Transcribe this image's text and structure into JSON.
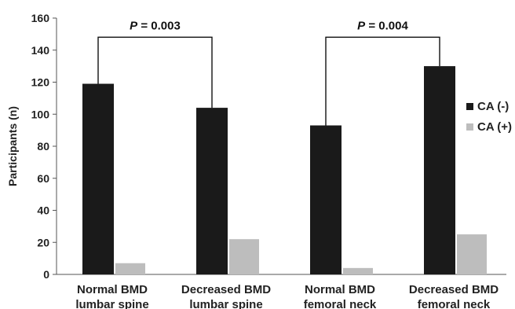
{
  "chart_data": {
    "type": "bar",
    "title": "",
    "xlabel": "",
    "ylabel": "Participants (n)",
    "ylim": [
      0,
      160
    ],
    "yticks": [
      "0",
      "20",
      "40",
      "60",
      "80",
      "100",
      "120",
      "140",
      "160"
    ],
    "categories": [
      [
        "Normal BMD",
        "lumbar spine"
      ],
      [
        "Decreased BMD",
        "lumbar spine"
      ],
      [
        "Normal BMD",
        "femoral neck"
      ],
      [
        "Decreased BMD",
        "femoral neck"
      ]
    ],
    "series": [
      {
        "name": "CA (-)",
        "values": [
          119,
          104,
          93,
          130
        ],
        "color": "#1a1a1a"
      },
      {
        "name": "CA (+)",
        "values": [
          7,
          22,
          4,
          25
        ],
        "color": "#bdbdbd"
      }
    ],
    "legend_position": "right",
    "grid": false,
    "annotations": [
      {
        "italic": "P",
        "rest": " = 0.003",
        "from": 0,
        "to": 1,
        "y": 152
      },
      {
        "italic": "P",
        "rest": " = 0.004",
        "from": 2,
        "to": 3,
        "y": 152
      }
    ]
  }
}
